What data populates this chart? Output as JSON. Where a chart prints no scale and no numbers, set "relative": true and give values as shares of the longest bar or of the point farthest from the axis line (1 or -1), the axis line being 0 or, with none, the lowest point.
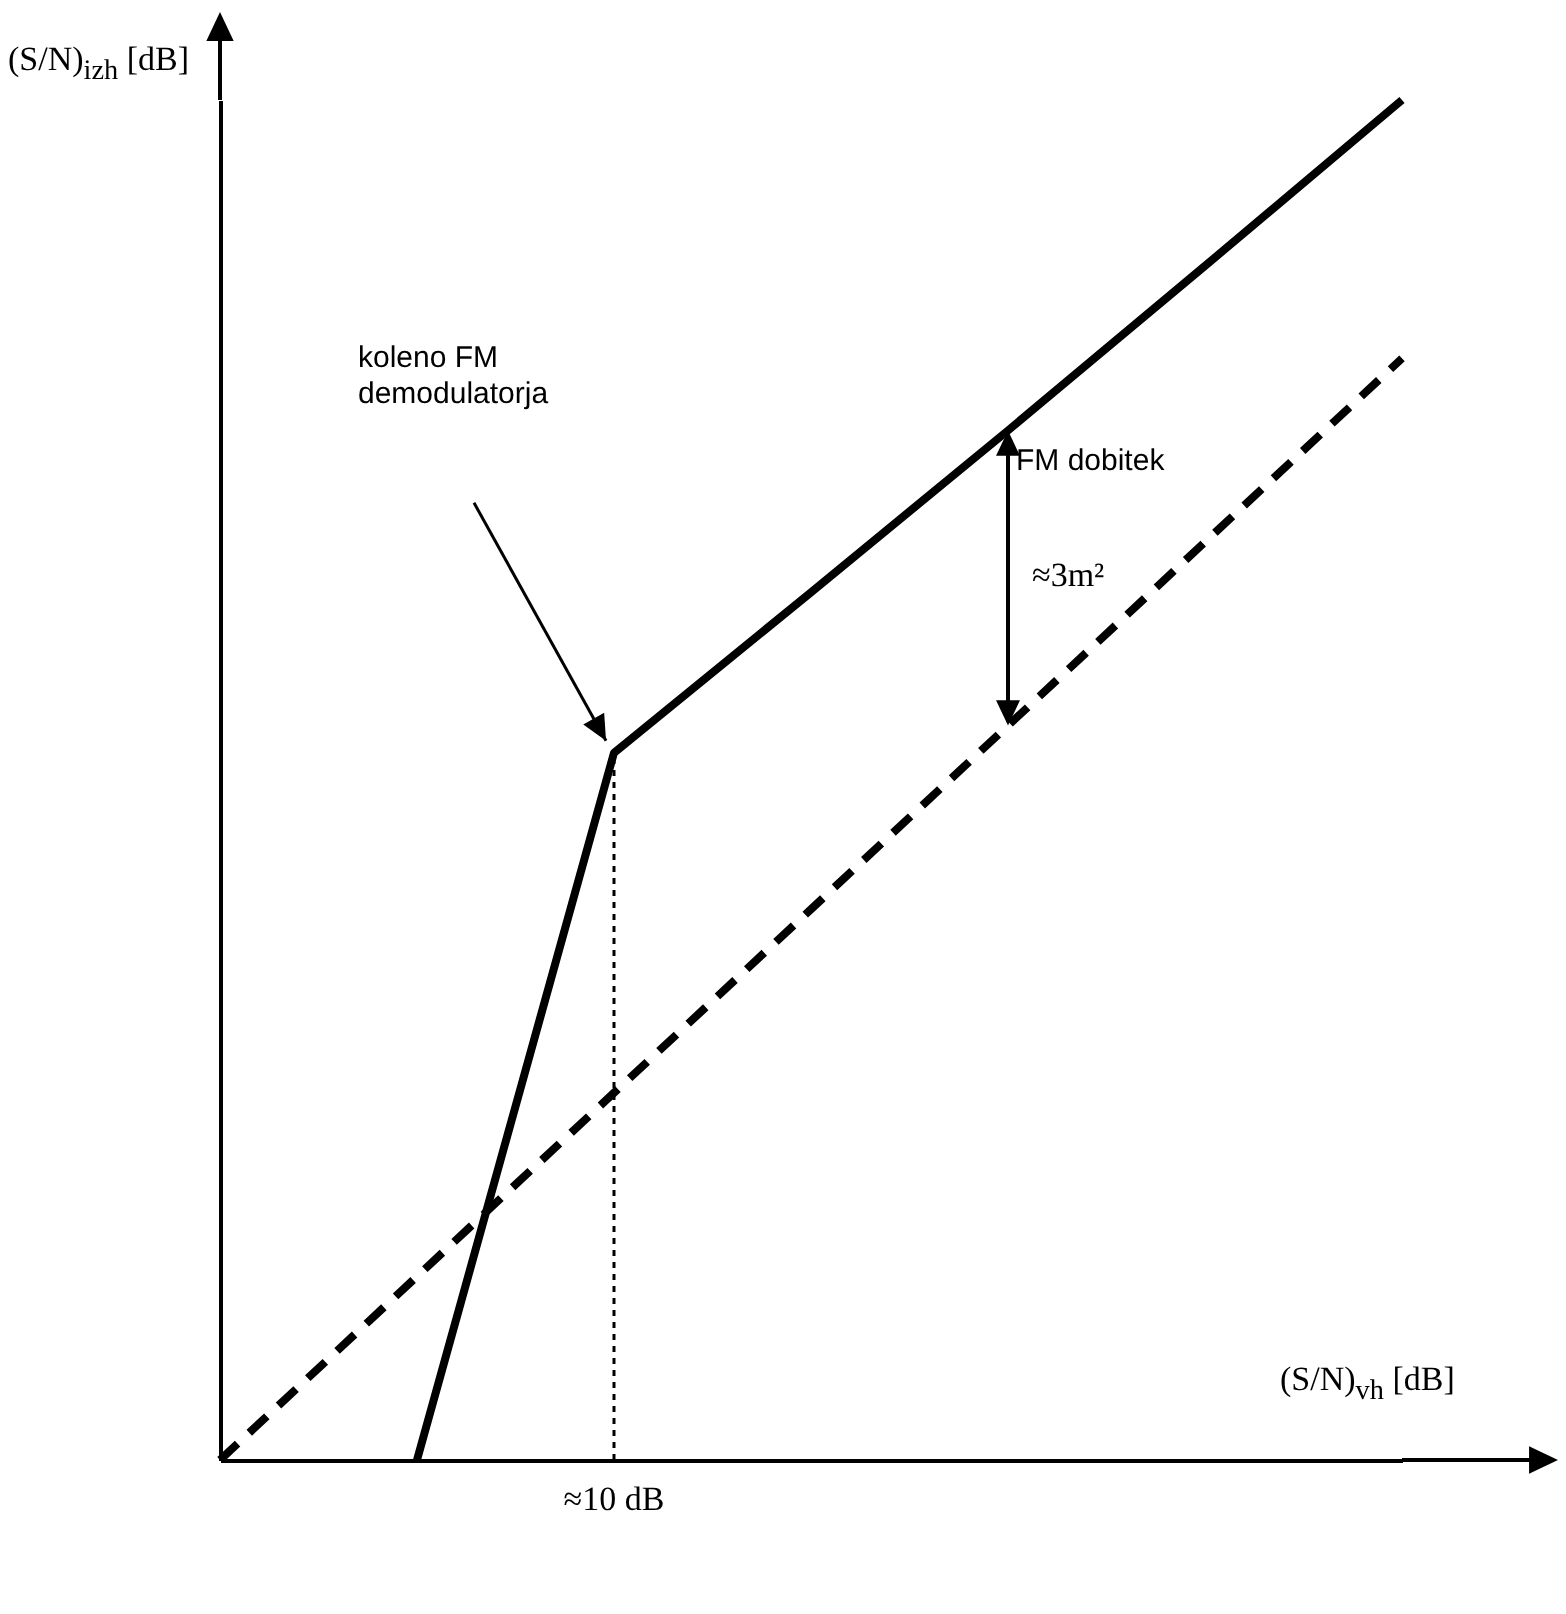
{
  "chart_data": {
    "type": "line",
    "relative": true,
    "xlabel": "(S/N)$_{vh}$ [dB]",
    "ylabel": "(S/N)$_{izh}$ [dB]",
    "grid": false,
    "marker": "none",
    "categories": [
      null,
      null,
      null,
      null,
      null,
      null,
      null
    ],
    "series": [
      {
        "color": "#000000",
        "line_style": "solid",
        "values": [
          null,
          0,
          0.52,
          0.638,
          0.757,
          0.878,
          1
        ]
      },
      {
        "color": "#000000",
        "line_style": "dashed",
        "values": [
          0,
          0.135,
          0.27,
          0.405,
          0.54,
          0.675,
          0.81
        ]
      }
    ],
    "annotations": [
      "koleno FM demodulatorja",
      "FM dobitek",
      "≈3m²",
      "≈10 dB"
    ]
  }
}
